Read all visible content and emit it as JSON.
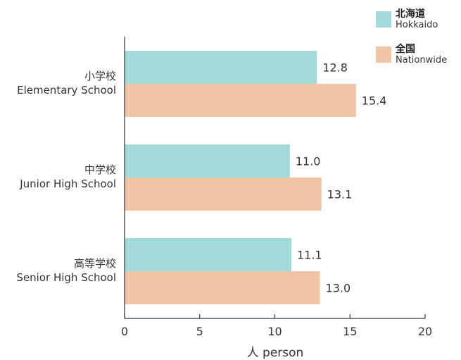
{
  "chart_data": {
    "type": "bar",
    "orientation": "horizontal",
    "categories": [
      {
        "jp": "小学校",
        "en": "Elementary School"
      },
      {
        "jp": "中学校",
        "en": "Junior High School"
      },
      {
        "jp": "高等学校",
        "en": "Senior High School"
      }
    ],
    "series": [
      {
        "name_jp": "北海道",
        "name_en": "Hokkaido",
        "color": "#a2dad9",
        "values": [
          12.8,
          11.0,
          11.1
        ],
        "labels": [
          "12.8",
          "11.0",
          "11.1"
        ]
      },
      {
        "name_jp": "全国",
        "name_en": "Nationwide",
        "color": "#f0c4a4",
        "values": [
          15.4,
          13.1,
          13.0
        ],
        "labels": [
          "15.4",
          "13.1",
          "13.0"
        ]
      }
    ],
    "xlabel": "人 person",
    "xlim": [
      0,
      20
    ],
    "xticks": [
      "0",
      "5",
      "10",
      "15",
      "20"
    ],
    "grid": false,
    "legend_position": "top-right"
  }
}
